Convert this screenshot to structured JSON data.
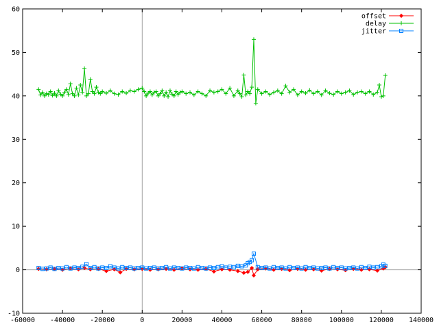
{
  "chart_data": {
    "type": "line",
    "title": "",
    "xlabel": "",
    "ylabel": "",
    "xlim": [
      -60000,
      140000
    ],
    "ylim": [
      -10,
      60
    ],
    "x_ticks": [
      -60000,
      -40000,
      -20000,
      0,
      20000,
      40000,
      60000,
      80000,
      100000,
      120000,
      140000
    ],
    "y_ticks": [
      -10,
      0,
      10,
      20,
      30,
      40,
      50,
      60
    ],
    "zero_axes": true,
    "grid": false,
    "legend_position": "top-right",
    "colors": {
      "offset": "#ff0000",
      "delay": "#00c000",
      "jitter": "#0080ff",
      "axis": "#a0a0a0"
    },
    "series": [
      {
        "name": "offset",
        "marker": "diamond",
        "x": [
          -52000,
          -48000,
          -44000,
          -40000,
          -36000,
          -32000,
          -29000,
          -26000,
          -22000,
          -18000,
          -14000,
          -11000,
          -8000,
          -4000,
          0,
          4000,
          8000,
          12000,
          16000,
          20000,
          24000,
          28000,
          32000,
          36000,
          40000,
          44000,
          48000,
          51000,
          53000,
          55000,
          56000,
          58000,
          62000,
          66000,
          70000,
          74000,
          78000,
          82000,
          86000,
          90000,
          94000,
          98000,
          102000,
          106000,
          110000,
          114000,
          118000,
          121000,
          122000
        ],
        "y": [
          0.2,
          0.1,
          0.2,
          0.0,
          0.3,
          0.1,
          0.4,
          0.1,
          0.2,
          -0.3,
          0.1,
          -0.6,
          0.2,
          0.1,
          0.2,
          0.0,
          0.1,
          0.2,
          0.0,
          0.3,
          0.1,
          0.0,
          0.2,
          -0.4,
          0.1,
          0.0,
          -0.3,
          -0.7,
          -0.5,
          0.4,
          -1.3,
          0.1,
          0.3,
          0.0,
          0.2,
          -0.1,
          0.2,
          0.0,
          0.1,
          -0.2,
          0.2,
          0.1,
          -0.1,
          0.2,
          0.0,
          0.1,
          -0.2,
          0.3,
          0.6
        ]
      },
      {
        "name": "delay",
        "marker": "plus",
        "x": [
          -52000,
          -51000,
          -50000,
          -49000,
          -48000,
          -47000,
          -46000,
          -45000,
          -44000,
          -43000,
          -42000,
          -41000,
          -40000,
          -39000,
          -38000,
          -37000,
          -36000,
          -35000,
          -34000,
          -33000,
          -32000,
          -31000,
          -30000,
          -29000,
          -28000,
          -27000,
          -26000,
          -25000,
          -24000,
          -23000,
          -22000,
          -21000,
          -20000,
          -18000,
          -16000,
          -14000,
          -12000,
          -10000,
          -8000,
          -6000,
          -4000,
          -2000,
          0,
          1000,
          2000,
          3000,
          4000,
          5000,
          6000,
          7000,
          8000,
          9000,
          10000,
          11000,
          12000,
          13000,
          14000,
          15000,
          16000,
          17000,
          18000,
          19000,
          20000,
          22000,
          24000,
          26000,
          28000,
          30000,
          32000,
          34000,
          36000,
          38000,
          40000,
          42000,
          44000,
          46000,
          48000,
          49000,
          50000,
          51000,
          52000,
          53000,
          54000,
          55000,
          56000,
          57000,
          58000,
          60000,
          62000,
          64000,
          66000,
          68000,
          70000,
          72000,
          74000,
          76000,
          78000,
          80000,
          82000,
          84000,
          86000,
          88000,
          90000,
          92000,
          94000,
          96000,
          98000,
          100000,
          102000,
          104000,
          106000,
          108000,
          110000,
          112000,
          114000,
          116000,
          118000,
          119000,
          120000,
          121000,
          122000
        ],
        "y": [
          41.5,
          40.2,
          40.8,
          40.0,
          40.5,
          40.3,
          41.0,
          40.1,
          40.6,
          40.0,
          41.2,
          40.4,
          40.0,
          40.8,
          41.5,
          40.3,
          42.8,
          40.5,
          40.0,
          41.8,
          40.2,
          42.5,
          40.8,
          46.3,
          40.0,
          40.5,
          43.8,
          41.0,
          40.5,
          42.0,
          40.8,
          40.5,
          41.0,
          40.6,
          41.2,
          40.5,
          40.3,
          41.0,
          40.6,
          41.2,
          41.0,
          41.5,
          41.8,
          41.0,
          40.0,
          40.6,
          41.0,
          40.2,
          40.8,
          41.0,
          40.0,
          40.5,
          41.2,
          40.0,
          40.8,
          39.8,
          41.2,
          40.4,
          40.0,
          41.0,
          40.3,
          40.8,
          41.0,
          40.5,
          40.8,
          40.2,
          41.0,
          40.5,
          40.0,
          41.2,
          40.8,
          41.0,
          41.5,
          40.5,
          41.8,
          40.0,
          41.2,
          40.5,
          39.8,
          44.8,
          40.2,
          41.0,
          40.5,
          42.0,
          53.0,
          38.3,
          41.5,
          40.5,
          41.0,
          40.3,
          40.8,
          41.2,
          40.5,
          42.3,
          40.8,
          41.5,
          40.2,
          41.0,
          40.6,
          41.3,
          40.5,
          41.0,
          40.2,
          41.2,
          40.6,
          40.3,
          41.0,
          40.5,
          40.8,
          41.2,
          40.3,
          40.8,
          41.0,
          40.5,
          41.0,
          40.3,
          40.8,
          42.5,
          39.8,
          40.0,
          44.7
        ]
      },
      {
        "name": "jitter",
        "marker": "square",
        "x": [
          -52000,
          -50000,
          -48000,
          -46000,
          -44000,
          -42000,
          -40000,
          -38000,
          -36000,
          -34000,
          -32000,
          -30000,
          -28000,
          -26000,
          -24000,
          -22000,
          -20000,
          -18000,
          -16000,
          -14000,
          -12000,
          -10000,
          -8000,
          -6000,
          -4000,
          -2000,
          0,
          2000,
          4000,
          6000,
          8000,
          10000,
          12000,
          14000,
          16000,
          18000,
          20000,
          22000,
          24000,
          26000,
          28000,
          30000,
          32000,
          34000,
          36000,
          38000,
          40000,
          42000,
          44000,
          46000,
          48000,
          50000,
          52000,
          53000,
          54000,
          55000,
          56000,
          58000,
          60000,
          62000,
          64000,
          66000,
          68000,
          70000,
          72000,
          74000,
          76000,
          78000,
          80000,
          82000,
          84000,
          86000,
          88000,
          90000,
          92000,
          94000,
          96000,
          98000,
          100000,
          102000,
          104000,
          106000,
          108000,
          110000,
          112000,
          114000,
          116000,
          118000,
          120000,
          121000,
          122000
        ],
        "y": [
          0.4,
          0.2,
          0.3,
          0.5,
          0.2,
          0.4,
          0.3,
          0.6,
          0.3,
          0.5,
          0.4,
          0.7,
          1.3,
          0.4,
          0.6,
          0.3,
          0.5,
          0.4,
          0.8,
          0.5,
          0.3,
          0.6,
          0.4,
          0.5,
          0.3,
          0.4,
          0.5,
          0.3,
          0.4,
          0.5,
          0.3,
          0.4,
          0.6,
          0.3,
          0.5,
          0.4,
          0.3,
          0.5,
          0.4,
          0.3,
          0.6,
          0.4,
          0.3,
          0.5,
          0.4,
          0.6,
          0.8,
          0.5,
          0.7,
          0.6,
          0.9,
          0.8,
          1.0,
          1.5,
          1.8,
          2.2,
          3.7,
          0.6,
          0.4,
          0.5,
          0.3,
          0.6,
          0.4,
          0.5,
          0.3,
          0.6,
          0.4,
          0.5,
          0.3,
          0.6,
          0.4,
          0.5,
          0.3,
          0.4,
          0.5,
          0.3,
          0.6,
          0.4,
          0.5,
          0.3,
          0.4,
          0.5,
          0.3,
          0.6,
          0.4,
          0.7,
          0.5,
          0.6,
          0.8,
          1.2,
          0.9
        ]
      }
    ]
  }
}
